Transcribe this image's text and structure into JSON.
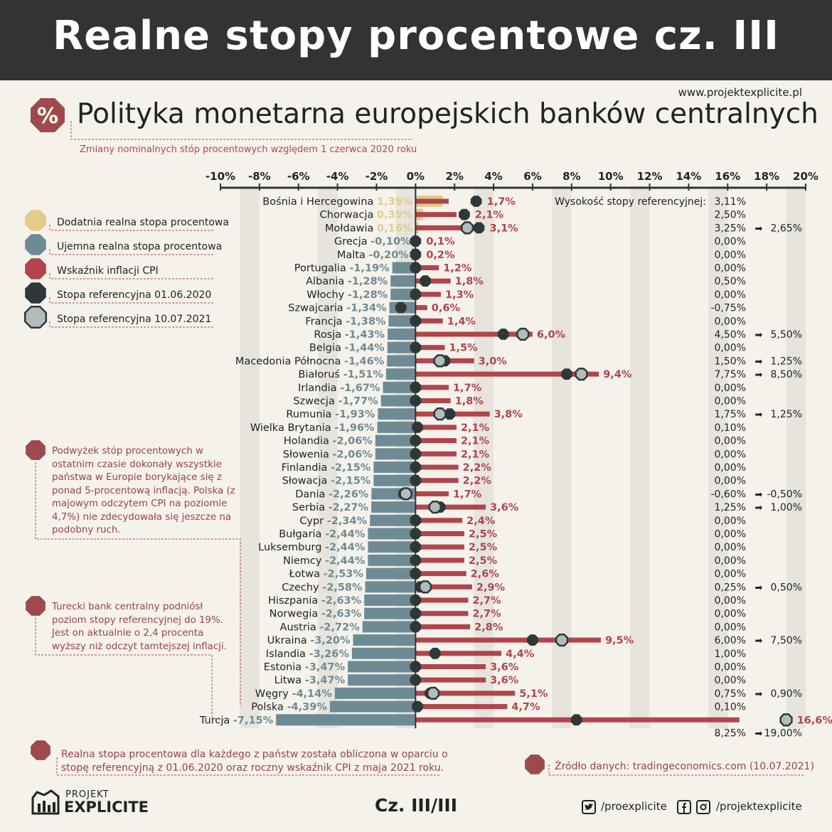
{
  "header": {
    "title": "Realne stopy procentowe cz. III"
  },
  "website": "www.projektexplicite.pl",
  "subtitle": "Polityka monetarna europejskich banków centralnych",
  "caption": "Zmiany nominalnych stóp procentowych względem 1 czerwca 2020 roku",
  "percent_badge": "%",
  "legend": [
    {
      "label": "Dodatnia realna stopa procentowa",
      "icon": "yellow-octagon-icon",
      "color": "#e3cc8a"
    },
    {
      "label": "Ujemna realna stopa procentowa",
      "icon": "gray-octagon-icon",
      "color": "#6e8a95"
    },
    {
      "label": "Wskaźnik inflacji CPI",
      "icon": "red-octagon-icon",
      "color": "#b0454b"
    },
    {
      "label": "Stopa referencyjna 01.06.2020",
      "icon": "dark-octagon-icon",
      "color": "#2f3838"
    },
    {
      "label": "Stopa referencyjna 10.07.2021",
      "icon": "light-octagon-icon",
      "color": "#b2bcbd"
    }
  ],
  "ref_rate_header": "Wysokość stopy referencyjnej:",
  "arrow_glyph": "➡",
  "notes": {
    "hikes": "Podwyżek stóp procentowych w ostatnim czasie dokonały wszystkie państwa w Europie borykające się z ponad 5-procentową inflacją. Polska (z majowym odczytem CPI na poziomie 4,7%) nie zdecydowała się jeszcze na podobny ruch.",
    "turkey": "Turecki bank centralny podniósł poziom stopy referencyjnej do 19%. Jest on aktualnie o 2,4 procenta wyższy niż odczyt tamtejszej inflacji."
  },
  "footnote": "Realna stopa procentowa dla każdego z państw została obliczona w oparciu o stopę referencyjną z 01.06.2020 oraz roczny wskaźnik CPI z maja 2021 roku.",
  "source": "Źródło danych: tradingeconomics.com (10.07.2021)",
  "page_number": "Cz. III/III",
  "logo": {
    "top": "PROJEKT",
    "main": "EXPLICITE"
  },
  "social": {
    "twitter": "/proexplicite",
    "facebook_instagram": "/projektexplicite"
  },
  "colors": {
    "positive": "#e3cc8a",
    "negative": "#6e8a95",
    "inflation": "#b0454b",
    "rate_2020": "#2f3838",
    "rate_2021": "#b2bcbd",
    "header_bg": "#333333",
    "page_bg": "#f4f2ea"
  },
  "chart_data": {
    "type": "bar",
    "orientation": "horizontal",
    "xlim": [
      -10,
      20
    ],
    "ticks": [
      "-10%",
      "-8%",
      "-6%",
      "-4%",
      "-2%",
      "0%",
      "2%",
      "4%",
      "6%",
      "8%",
      "10%",
      "12%",
      "14%",
      "16%",
      "18%",
      "20%"
    ],
    "tick_values": [
      -10,
      -8,
      -6,
      -4,
      -2,
      0,
      2,
      4,
      6,
      8,
      10,
      12,
      14,
      16,
      18,
      20
    ],
    "grid": "alternating vertical bands",
    "rows": [
      {
        "country": "Bośnia i Hercegowina",
        "real": 1.39,
        "real_label": "1,39%",
        "cpi": 1.7,
        "cpi_label": "1,7%",
        "rate_2020": 0,
        "rate_2021": null,
        "rate_2020_label": "",
        "rate_2021_label": "",
        "ref_display": "3,11%",
        "ref_new": "",
        "marker_2020": 3.11,
        "marker_2021": null
      },
      {
        "country": "Chorwacja",
        "real": 0.39,
        "real_label": "0,39%",
        "cpi": 2.1,
        "cpi_label": "2,1%",
        "ref_display": "2,50%",
        "ref_new": "",
        "marker_2020": 2.5,
        "marker_2021": null
      },
      {
        "country": "Mołdawia",
        "real": 0.16,
        "real_label": "0,16%",
        "cpi": 3.1,
        "cpi_label": "3,1%",
        "ref_display": "3,25%",
        "ref_new": "2,65%",
        "marker_2020": 3.25,
        "marker_2021": 2.65
      },
      {
        "country": "Grecja",
        "real": -0.1,
        "real_label": "-0,10%",
        "cpi": 0.1,
        "cpi_label": "0,1%",
        "ref_display": "0,00%",
        "ref_new": "",
        "marker_2020": 0,
        "marker_2021": null
      },
      {
        "country": "Malta",
        "real": -0.2,
        "real_label": "-0,20%",
        "cpi": 0.2,
        "cpi_label": "0,2%",
        "ref_display": "0,00%",
        "ref_new": "",
        "marker_2020": 0,
        "marker_2021": null
      },
      {
        "country": "Portugalia",
        "real": -1.19,
        "real_label": "-1,19%",
        "cpi": 1.2,
        "cpi_label": "1,2%",
        "ref_display": "0,00%",
        "ref_new": "",
        "marker_2020": 0,
        "marker_2021": null
      },
      {
        "country": "Albania",
        "real": -1.28,
        "real_label": "-1,28%",
        "cpi": 1.8,
        "cpi_label": "1,8%",
        "ref_display": "0,50%",
        "ref_new": "",
        "marker_2020": 0.5,
        "marker_2021": null
      },
      {
        "country": "Włochy",
        "real": -1.28,
        "real_label": "-1,28%",
        "cpi": 1.3,
        "cpi_label": "1,3%",
        "ref_display": "0,00%",
        "ref_new": "",
        "marker_2020": 0,
        "marker_2021": null
      },
      {
        "country": "Szwajcaria",
        "real": -1.34,
        "real_label": "-1,34%",
        "cpi": 0.6,
        "cpi_label": "0,6%",
        "ref_display": "-0,75%",
        "ref_new": "",
        "marker_2020": -0.75,
        "marker_2021": null
      },
      {
        "country": "Francja",
        "real": -1.38,
        "real_label": "-1,38%",
        "cpi": 1.4,
        "cpi_label": "1,4%",
        "ref_display": "0,00%",
        "ref_new": "",
        "marker_2020": 0,
        "marker_2021": null
      },
      {
        "country": "Rosja",
        "real": -1.43,
        "real_label": "-1,43%",
        "cpi": 6.0,
        "cpi_label": "6,0%",
        "ref_display": "4,50%",
        "ref_new": "5,50%",
        "marker_2020": 4.5,
        "marker_2021": 5.5
      },
      {
        "country": "Belgia",
        "real": -1.44,
        "real_label": "-1,44%",
        "cpi": 1.5,
        "cpi_label": "1,5%",
        "ref_display": "0,00%",
        "ref_new": "",
        "marker_2020": 0,
        "marker_2021": null
      },
      {
        "country": "Macedonia Północna",
        "real": -1.46,
        "real_label": "-1,46%",
        "cpi": 3.0,
        "cpi_label": "3,0%",
        "ref_display": "1,50%",
        "ref_new": "1,25%",
        "marker_2020": 1.5,
        "marker_2021": 1.25
      },
      {
        "country": "Białoruś",
        "real": -1.51,
        "real_label": "-1,51%",
        "cpi": 9.4,
        "cpi_label": "9,4%",
        "ref_display": "7,75%",
        "ref_new": "8,50%",
        "marker_2020": 7.75,
        "marker_2021": 8.5
      },
      {
        "country": "Irlandia",
        "real": -1.67,
        "real_label": "-1,67%",
        "cpi": 1.7,
        "cpi_label": "1,7%",
        "ref_display": "0,00%",
        "ref_new": "",
        "marker_2020": 0,
        "marker_2021": null
      },
      {
        "country": "Szwecja",
        "real": -1.77,
        "real_label": "-1,77%",
        "cpi": 1.8,
        "cpi_label": "1,8%",
        "ref_display": "0,00%",
        "ref_new": "",
        "marker_2020": 0,
        "marker_2021": null
      },
      {
        "country": "Rumunia",
        "real": -1.93,
        "real_label": "-1,93%",
        "cpi": 3.8,
        "cpi_label": "3,8%",
        "ref_display": "1,75%",
        "ref_new": "1,25%",
        "marker_2020": 1.75,
        "marker_2021": 1.25
      },
      {
        "country": "Wielka Brytania",
        "real": -1.96,
        "real_label": "-1,96%",
        "cpi": 2.1,
        "cpi_label": "2,1%",
        "ref_display": "0,10%",
        "ref_new": "",
        "marker_2020": 0.1,
        "marker_2021": null
      },
      {
        "country": "Holandia",
        "real": -2.06,
        "real_label": "-2,06%",
        "cpi": 2.1,
        "cpi_label": "2,1%",
        "ref_display": "0,00%",
        "ref_new": "",
        "marker_2020": 0,
        "marker_2021": null
      },
      {
        "country": "Słowenia",
        "real": -2.06,
        "real_label": "-2,06%",
        "cpi": 2.1,
        "cpi_label": "2,1%",
        "ref_display": "0,00%",
        "ref_new": "",
        "marker_2020": 0,
        "marker_2021": null
      },
      {
        "country": "Finlandia",
        "real": -2.15,
        "real_label": "-2,15%",
        "cpi": 2.2,
        "cpi_label": "2,2%",
        "ref_display": "0,00%",
        "ref_new": "",
        "marker_2020": 0,
        "marker_2021": null
      },
      {
        "country": "Słowacja",
        "real": -2.15,
        "real_label": "-2,15%",
        "cpi": 2.2,
        "cpi_label": "2,2%",
        "ref_display": "0,00%",
        "ref_new": "",
        "marker_2020": 0,
        "marker_2021": null
      },
      {
        "country": "Dania",
        "real": -2.26,
        "real_label": "-2,26%",
        "cpi": 1.7,
        "cpi_label": "1,7%",
        "ref_display": "-0,60%",
        "ref_new": "-0,50%",
        "marker_2020": -0.6,
        "marker_2021": -0.5
      },
      {
        "country": "Serbia",
        "real": -2.27,
        "real_label": "-2,27%",
        "cpi": 3.6,
        "cpi_label": "3,6%",
        "ref_display": "1,25%",
        "ref_new": "1,00%",
        "marker_2020": 1.25,
        "marker_2021": 1.0
      },
      {
        "country": "Cypr",
        "real": -2.34,
        "real_label": "-2,34%",
        "cpi": 2.4,
        "cpi_label": "2,4%",
        "ref_display": "0,00%",
        "ref_new": "",
        "marker_2020": 0,
        "marker_2021": null
      },
      {
        "country": "Bułgaria",
        "real": -2.44,
        "real_label": "-2,44%",
        "cpi": 2.5,
        "cpi_label": "2,5%",
        "ref_display": "0,00%",
        "ref_new": "",
        "marker_2020": 0,
        "marker_2021": null
      },
      {
        "country": "Luksemburg",
        "real": -2.44,
        "real_label": "-2,44%",
        "cpi": 2.5,
        "cpi_label": "2,5%",
        "ref_display": "0,00%",
        "ref_new": "",
        "marker_2020": 0,
        "marker_2021": null
      },
      {
        "country": "Niemcy",
        "real": -2.44,
        "real_label": "-2,44%",
        "cpi": 2.5,
        "cpi_label": "2,5%",
        "ref_display": "0,00%",
        "ref_new": "",
        "marker_2020": 0,
        "marker_2021": null
      },
      {
        "country": "Łotwa",
        "real": -2.53,
        "real_label": "-2,53%",
        "cpi": 2.6,
        "cpi_label": "2,6%",
        "ref_display": "0,00%",
        "ref_new": "",
        "marker_2020": 0,
        "marker_2021": null
      },
      {
        "country": "Czechy",
        "real": -2.58,
        "real_label": "-2,58%",
        "cpi": 2.9,
        "cpi_label": "2,9%",
        "ref_display": "0,25%",
        "ref_new": "0,50%",
        "marker_2020": 0.25,
        "marker_2021": 0.5
      },
      {
        "country": "Hiszpania",
        "real": -2.63,
        "real_label": "-2,63%",
        "cpi": 2.7,
        "cpi_label": "2,7%",
        "ref_display": "0,00%",
        "ref_new": "",
        "marker_2020": 0,
        "marker_2021": null
      },
      {
        "country": "Norwegia",
        "real": -2.63,
        "real_label": "-2,63%",
        "cpi": 2.7,
        "cpi_label": "2,7%",
        "ref_display": "0,00%",
        "ref_new": "",
        "marker_2020": 0,
        "marker_2021": null
      },
      {
        "country": "Austria",
        "real": -2.72,
        "real_label": "-2,72%",
        "cpi": 2.8,
        "cpi_label": "2,8%",
        "ref_display": "0,00%",
        "ref_new": "",
        "marker_2020": 0,
        "marker_2021": null
      },
      {
        "country": "Ukraina",
        "real": -3.2,
        "real_label": "-3,20%",
        "cpi": 9.5,
        "cpi_label": "9,5%",
        "ref_display": "6,00%",
        "ref_new": "7,50%",
        "marker_2020": 6.0,
        "marker_2021": 7.5
      },
      {
        "country": "Islandia",
        "real": -3.26,
        "real_label": "-3,26%",
        "cpi": 4.4,
        "cpi_label": "4,4%",
        "ref_display": "1,00%",
        "ref_new": "",
        "marker_2020": 1.0,
        "marker_2021": null
      },
      {
        "country": "Estonia",
        "real": -3.47,
        "real_label": "-3,47%",
        "cpi": 3.6,
        "cpi_label": "3,6%",
        "ref_display": "0,00%",
        "ref_new": "",
        "marker_2020": 0,
        "marker_2021": null
      },
      {
        "country": "Litwa",
        "real": -3.47,
        "real_label": "-3,47%",
        "cpi": 3.6,
        "cpi_label": "3,6%",
        "ref_display": "0,00%",
        "ref_new": "",
        "marker_2020": 0,
        "marker_2021": null
      },
      {
        "country": "Węgry",
        "real": -4.14,
        "real_label": "-4,14%",
        "cpi": 5.1,
        "cpi_label": "5,1%",
        "ref_display": "0,75%",
        "ref_new": "0,90%",
        "marker_2020": 0.75,
        "marker_2021": 0.9
      },
      {
        "country": "Polska",
        "real": -4.39,
        "real_label": "-4,39%",
        "cpi": 4.7,
        "cpi_label": "4,7%",
        "ref_display": "0,10%",
        "ref_new": "",
        "marker_2020": 0.1,
        "marker_2021": null
      },
      {
        "country": "Turcja",
        "real": -7.15,
        "real_label": "-7,15%",
        "cpi": 16.6,
        "cpi_label": "16,6%",
        "ref_display": "8,25%",
        "ref_new": "19,00%",
        "marker_2020": 8.25,
        "marker_2021": 19.0
      }
    ]
  }
}
